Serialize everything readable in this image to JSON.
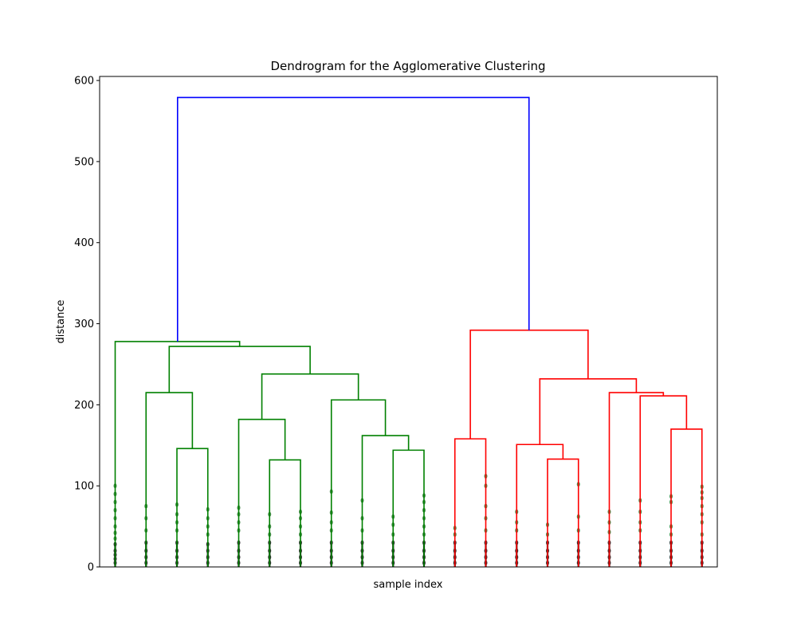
{
  "chart_data": {
    "type": "dendrogram",
    "title": "Dendrogram for the Agglomerative Clustering",
    "xlabel": "sample index",
    "ylabel": "distance",
    "ylim": [
      0,
      605
    ],
    "y_ticks": [
      0,
      100,
      200,
      300,
      400,
      500,
      600
    ],
    "x_tick_labels": "none",
    "leaf_count": 20,
    "colors": {
      "root": "#0000ff",
      "cluster_a": "#008000",
      "cluster_b": "#ff0000",
      "leaf_points": "#2e7d32",
      "leaf_base": "#000000"
    },
    "clusters": [
      {
        "name": "cluster_a",
        "color": "#008000",
        "leaves": [
          1,
          2,
          3,
          4,
          5,
          6,
          7,
          8,
          9,
          10,
          11
        ]
      },
      {
        "name": "cluster_b",
        "color": "#ff0000",
        "leaves": [
          12,
          13,
          14,
          15,
          16,
          17,
          18,
          19,
          20
        ]
      }
    ],
    "links": [
      {
        "color": "#008000",
        "left_x": 3,
        "left_h": 0,
        "right_x": 4,
        "right_h": 0,
        "h": 146
      },
      {
        "color": "#008000",
        "left_x": 2,
        "left_h": 0,
        "right_x": 3.5,
        "right_h": 146,
        "h": 215
      },
      {
        "color": "#008000",
        "left_x": 6,
        "left_h": 0,
        "right_x": 7,
        "right_h": 0,
        "h": 132
      },
      {
        "color": "#008000",
        "left_x": 5,
        "left_h": 0,
        "right_x": 6.5,
        "right_h": 132,
        "h": 182
      },
      {
        "color": "#008000",
        "left_x": 10,
        "left_h": 0,
        "right_x": 11,
        "right_h": 0,
        "h": 144
      },
      {
        "color": "#008000",
        "left_x": 9,
        "left_h": 0,
        "right_x": 10.5,
        "right_h": 144,
        "h": 162
      },
      {
        "color": "#008000",
        "left_x": 8,
        "left_h": 0,
        "right_x": 9.75,
        "right_h": 162,
        "h": 206
      },
      {
        "color": "#008000",
        "left_x": 5.75,
        "left_h": 182,
        "right_x": 8.875,
        "right_h": 206,
        "h": 238
      },
      {
        "color": "#008000",
        "left_x": 2.75,
        "left_h": 215,
        "right_x": 7.3125,
        "right_h": 238,
        "h": 272
      },
      {
        "color": "#008000",
        "left_x": 1,
        "left_h": 0,
        "right_x": 5.03,
        "right_h": 272,
        "h": 278
      },
      {
        "color": "#ff0000",
        "left_x": 12,
        "left_h": 0,
        "right_x": 13,
        "right_h": 0,
        "h": 158
      },
      {
        "color": "#ff0000",
        "left_x": 15,
        "left_h": 0,
        "right_x": 16,
        "right_h": 0,
        "h": 133
      },
      {
        "color": "#ff0000",
        "left_x": 14,
        "left_h": 0,
        "right_x": 15.5,
        "right_h": 133,
        "h": 151
      },
      {
        "color": "#ff0000",
        "left_x": 19,
        "left_h": 0,
        "right_x": 20,
        "right_h": 0,
        "h": 170
      },
      {
        "color": "#ff0000",
        "left_x": 18,
        "left_h": 0,
        "right_x": 19.5,
        "right_h": 170,
        "h": 211
      },
      {
        "color": "#ff0000",
        "left_x": 17,
        "left_h": 0,
        "right_x": 18.75,
        "right_h": 211,
        "h": 215
      },
      {
        "color": "#ff0000",
        "left_x": 14.75,
        "left_h": 151,
        "right_x": 17.875,
        "right_h": 215,
        "h": 232
      },
      {
        "color": "#ff0000",
        "left_x": 12.5,
        "left_h": 158,
        "right_x": 16.3125,
        "right_h": 232,
        "h": 292
      },
      {
        "color": "#0000ff",
        "left_x": 3.02,
        "left_h": 278,
        "right_x": 14.4,
        "right_h": 292,
        "h": 579
      }
    ],
    "leaf_point_heights": [
      [
        5,
        10,
        15,
        20,
        28,
        35,
        42,
        50,
        60,
        70,
        80,
        90,
        100
      ],
      [
        5,
        12,
        20,
        30,
        45,
        60,
        75
      ],
      [
        5,
        12,
        20,
        30,
        45,
        55,
        65,
        77
      ],
      [
        5,
        12,
        20,
        28,
        40,
        50,
        60,
        71
      ],
      [
        5,
        12,
        20,
        30,
        45,
        55,
        65,
        73
      ],
      [
        5,
        12,
        20,
        30,
        40,
        50,
        65
      ],
      [
        5,
        12,
        20,
        30,
        40,
        50,
        60,
        68
      ],
      [
        5,
        12,
        20,
        30,
        45,
        55,
        67,
        93
      ],
      [
        5,
        12,
        20,
        30,
        45,
        60,
        82
      ],
      [
        5,
        12,
        20,
        30,
        40,
        52,
        62
      ],
      [
        5,
        12,
        20,
        30,
        40,
        50,
        60,
        70,
        80,
        88
      ],
      [
        5,
        12,
        20,
        30,
        40,
        48
      ],
      [
        5,
        12,
        20,
        30,
        45,
        60,
        75,
        100,
        112
      ],
      [
        5,
        12,
        20,
        30,
        45,
        55,
        68
      ],
      [
        5,
        12,
        20,
        30,
        40,
        52
      ],
      [
        5,
        12,
        20,
        30,
        45,
        62,
        102
      ],
      [
        5,
        12,
        20,
        30,
        43,
        55,
        68
      ],
      [
        5,
        12,
        20,
        30,
        45,
        55,
        68,
        82
      ],
      [
        5,
        12,
        20,
        30,
        40,
        50,
        80,
        87
      ],
      [
        5,
        12,
        20,
        30,
        40,
        55,
        65,
        75,
        85,
        92,
        99
      ]
    ]
  }
}
